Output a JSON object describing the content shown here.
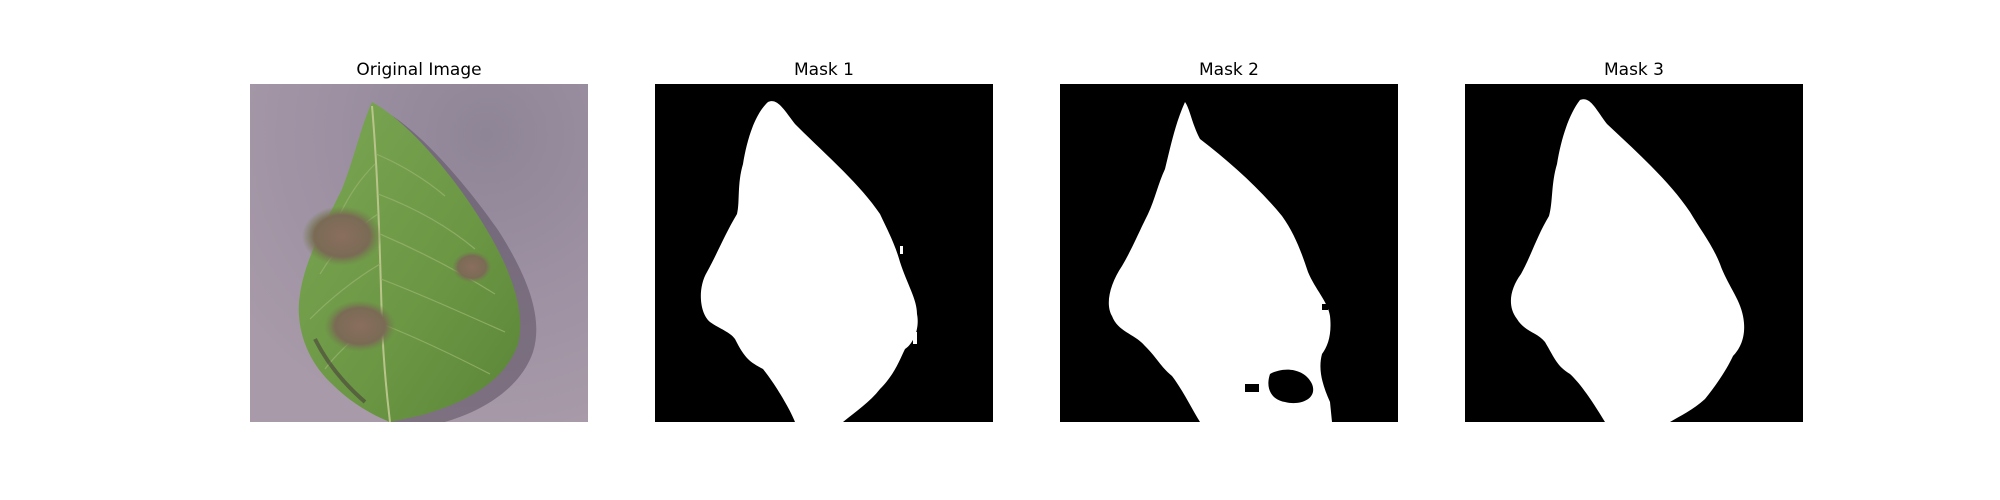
{
  "figure": {
    "panels": [
      {
        "title": "Original Image"
      },
      {
        "title": "Mask 1"
      },
      {
        "title": "Mask 2"
      },
      {
        "title": "Mask 3"
      }
    ]
  },
  "colors": {
    "background": "#ffffff",
    "mask_background": "#000000",
    "mask_foreground": "#ffffff",
    "leaf_green": "#6e9a47",
    "lesion_brown": "#7a6352",
    "backdrop_lavender": "#9a8ea0"
  }
}
